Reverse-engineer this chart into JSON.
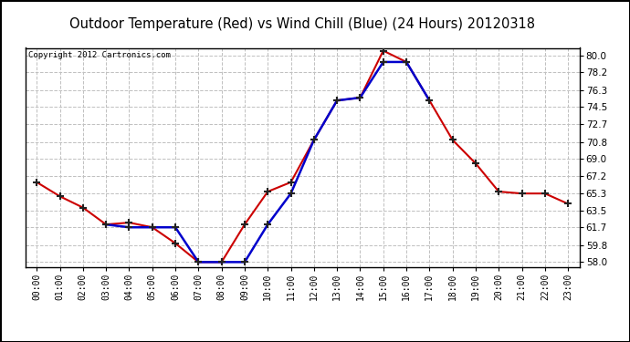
{
  "title": "Outdoor Temperature (Red) vs Wind Chill (Blue) (24 Hours) 20120318",
  "copyright": "Copyright 2012 Cartronics.com",
  "hours": [
    0,
    1,
    2,
    3,
    4,
    5,
    6,
    7,
    8,
    9,
    10,
    11,
    12,
    13,
    14,
    15,
    16,
    17,
    18,
    19,
    20,
    21,
    22,
    23
  ],
  "red_x": [
    0,
    1,
    2,
    3,
    4,
    5,
    6,
    7,
    8,
    9,
    10,
    11,
    12,
    13,
    14,
    15,
    16,
    17,
    18,
    19,
    20,
    21,
    22,
    23
  ],
  "red_y": [
    66.5,
    65.0,
    63.8,
    62.0,
    62.2,
    61.7,
    60.0,
    58.0,
    58.0,
    62.0,
    65.5,
    66.5,
    71.0,
    75.2,
    75.5,
    80.5,
    79.3,
    75.2,
    71.0,
    68.5,
    65.5,
    65.3,
    65.3,
    64.2
  ],
  "blue_x": [
    3,
    4,
    5,
    6,
    7,
    8,
    9,
    10,
    11,
    12,
    13,
    14,
    15,
    16,
    17
  ],
  "blue_y": [
    62.0,
    61.7,
    61.7,
    61.7,
    58.0,
    58.0,
    58.0,
    62.0,
    65.3,
    71.0,
    75.2,
    75.5,
    79.3,
    79.3,
    75.2
  ],
  "yticks": [
    58.0,
    59.8,
    61.7,
    63.5,
    65.3,
    67.2,
    69.0,
    70.8,
    72.7,
    74.5,
    76.3,
    78.2,
    80.0
  ],
  "ylim": [
    57.5,
    80.8
  ],
  "xlim": [
    -0.5,
    23.5
  ],
  "background_color": "#ffffff",
  "plot_bg_color": "#ffffff",
  "outer_border_color": "#000000",
  "grid_color": "#c0c0c0",
  "red_color": "#cc0000",
  "blue_color": "#0000cc",
  "title_fontsize": 10.5,
  "copyright_fontsize": 6.5,
  "tick_fontsize": 7,
  "ytick_fontsize": 7.5
}
